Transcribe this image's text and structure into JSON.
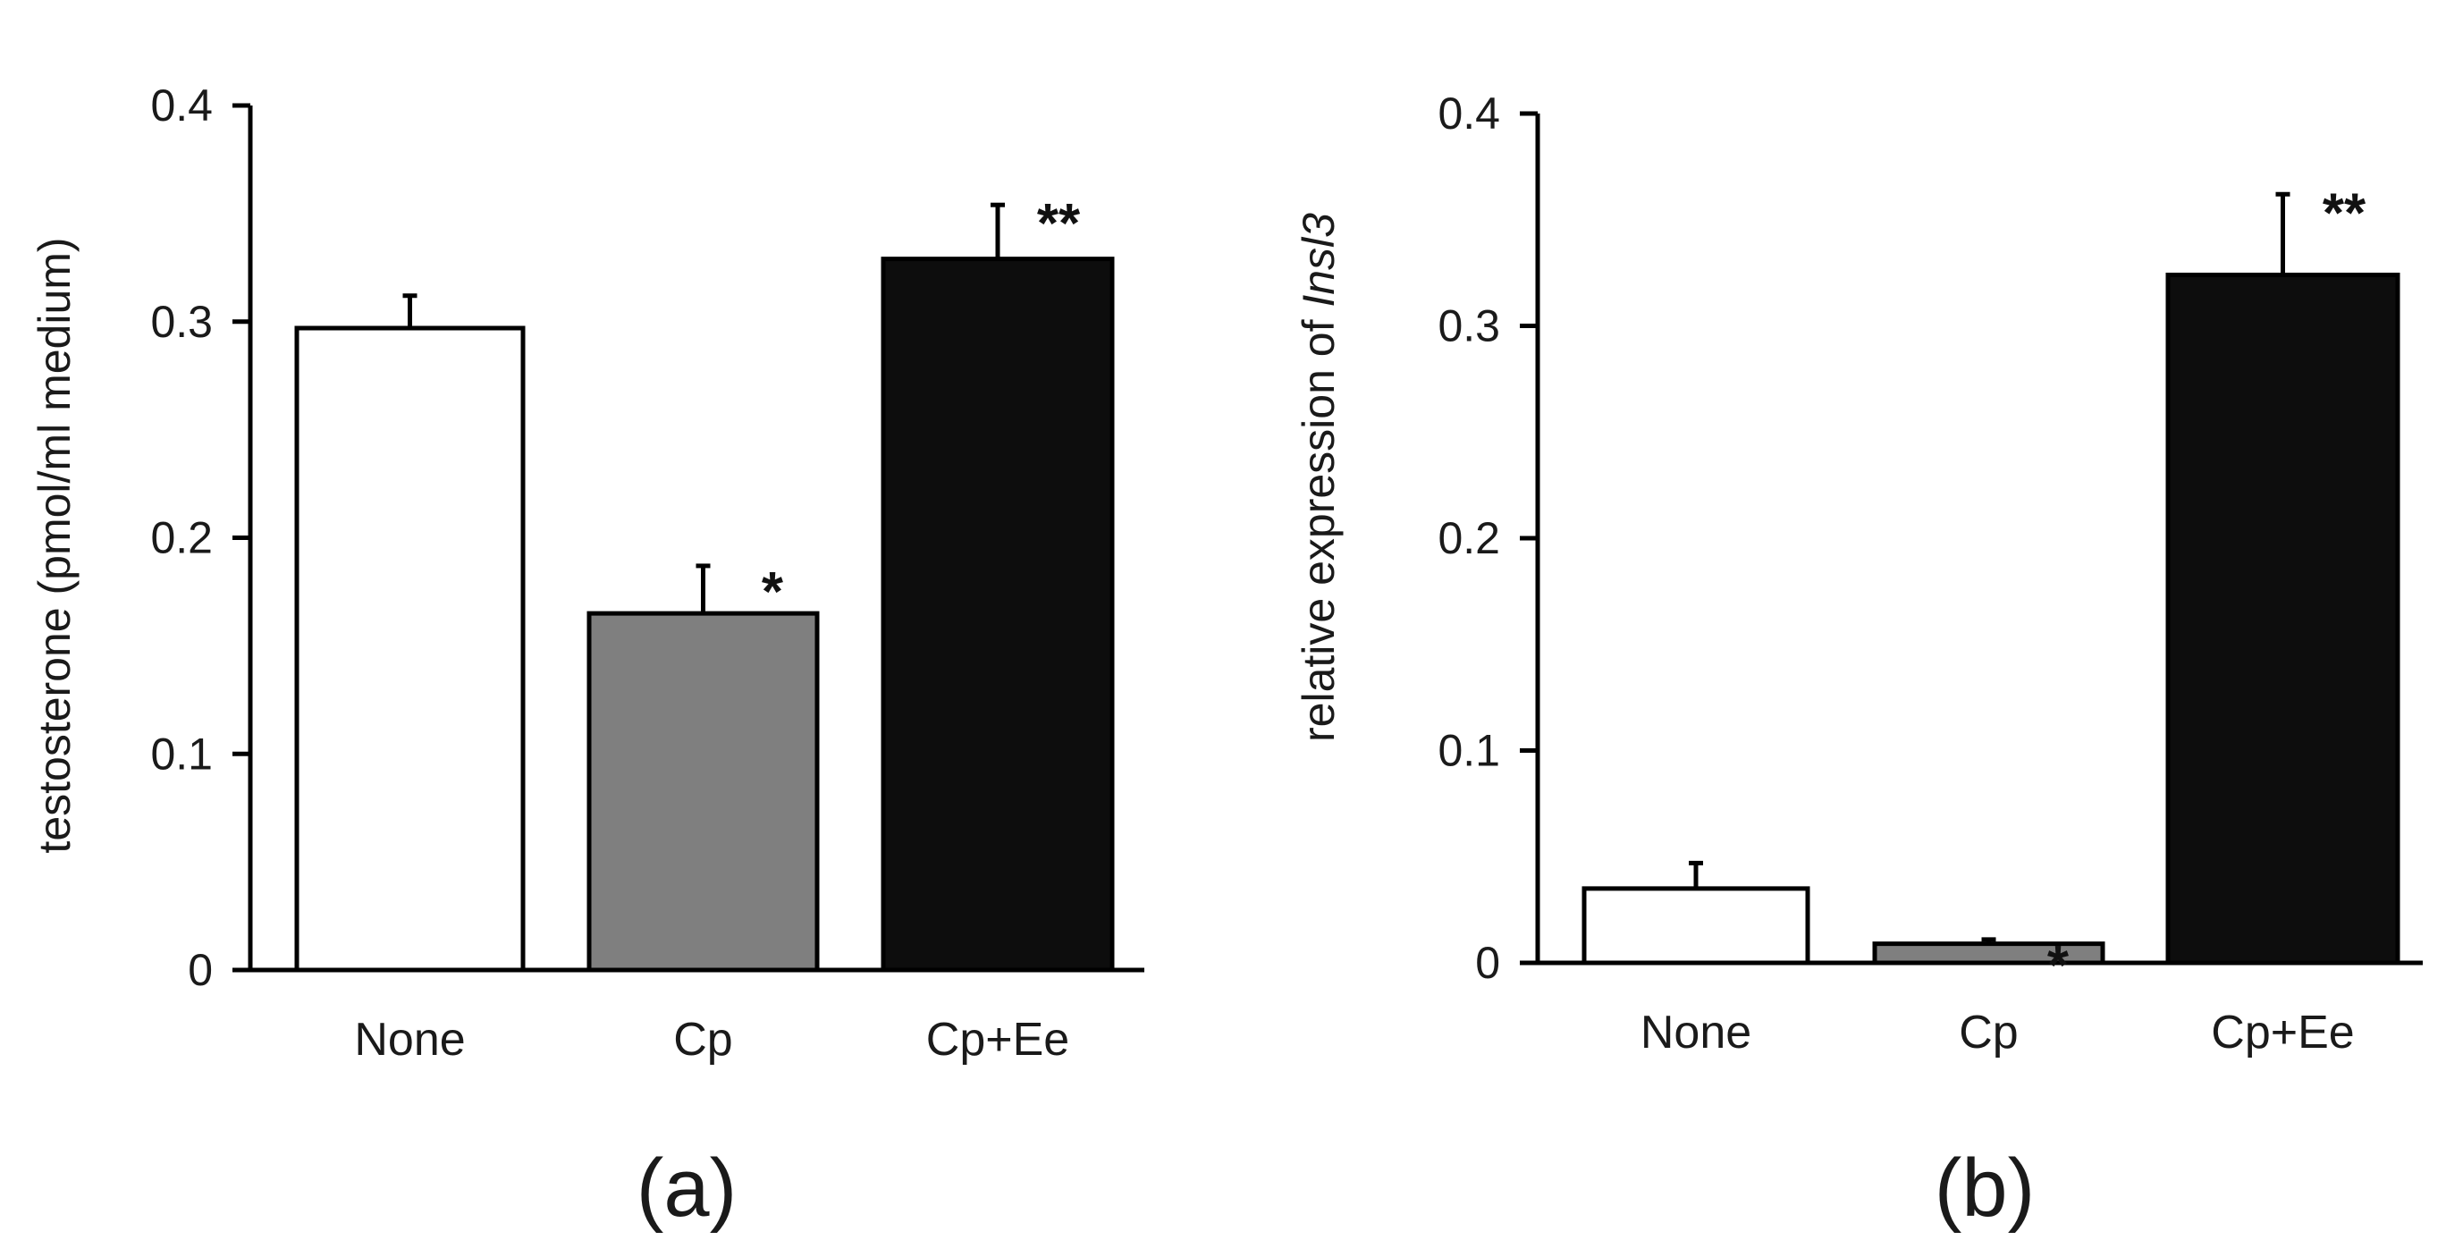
{
  "chart_data": [
    {
      "type": "bar",
      "panel": "(a)",
      "ylabel": "testosterone  (pmol/ml medium)",
      "ylim": [
        0,
        0.4
      ],
      "yticks": [
        "0",
        "0.1",
        "0.2",
        "0.3",
        "0.4"
      ],
      "categories": [
        "None",
        "Cp",
        "Cp+Ee"
      ],
      "values": [
        0.297,
        0.165,
        0.329
      ],
      "errors": [
        0.015,
        0.022,
        0.025
      ],
      "significance": [
        "",
        "*",
        "**"
      ],
      "colors": [
        "#ffffff",
        "#7f7f7f",
        "#0d0d0d"
      ]
    },
    {
      "type": "bar",
      "panel": "(b)",
      "ylabel": "relative expression of Insl3",
      "ylabel_plain": "relative expression of ",
      "ylabel_italic": "Insl3",
      "ylim": [
        0,
        0.4
      ],
      "yticks": [
        "0",
        "0.1",
        "0.2",
        "0.3",
        "0.4"
      ],
      "categories": [
        "None",
        "Cp",
        "Cp+Ee"
      ],
      "values": [
        0.035,
        0.009,
        0.324
      ],
      "errors": [
        0.012,
        0.002,
        0.038
      ],
      "significance": [
        "",
        "*",
        "**"
      ],
      "colors": [
        "#ffffff",
        "#7f7f7f",
        "#0d0d0d"
      ]
    }
  ]
}
